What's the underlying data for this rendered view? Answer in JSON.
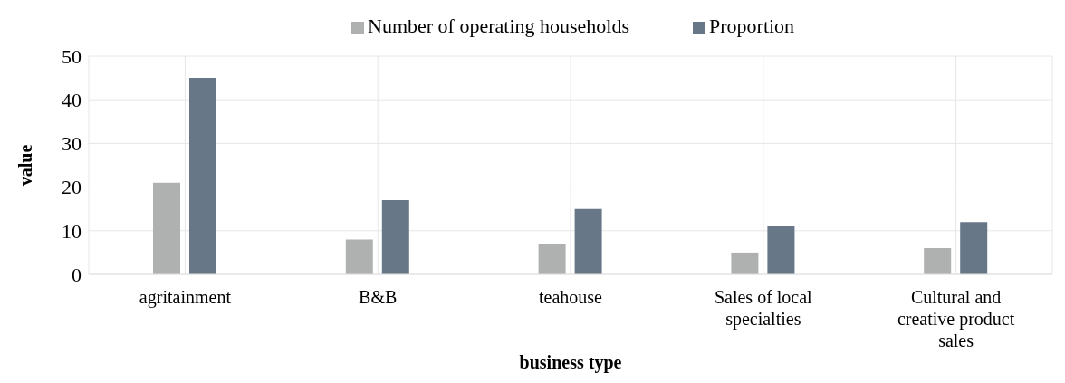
{
  "chart_data": {
    "type": "bar",
    "xlabel": "business type",
    "ylabel": "value",
    "categories": [
      "agritainment",
      "B&B",
      "teahouse",
      "Sales of local specialties",
      "Cultural and creative product sales"
    ],
    "series": [
      {
        "name": "Number of operating households",
        "color": "#afb0b0",
        "values": [
          21,
          8,
          7,
          5,
          6
        ]
      },
      {
        "name": "Proportion",
        "color": "#687788",
        "values": [
          45,
          17,
          15,
          11,
          12
        ]
      }
    ],
    "ylim": [
      0,
      50
    ],
    "yticks": [
      0,
      10,
      20,
      30,
      40,
      50
    ],
    "grid": true,
    "legend": "top"
  }
}
